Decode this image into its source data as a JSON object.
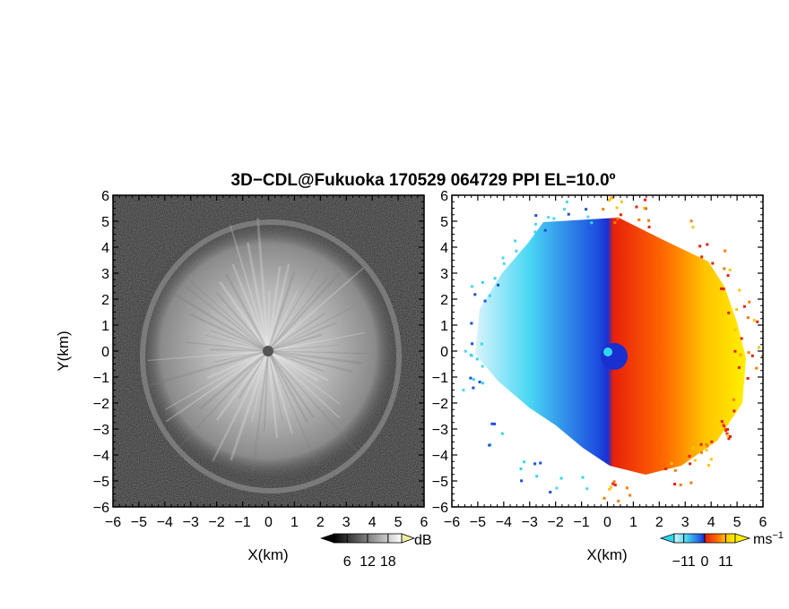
{
  "title": "3D−CDL@Fukuoka 170529 064729 PPI EL=10.0º",
  "chart_data": [
    {
      "type": "heatmap",
      "panel": "left",
      "xlabel": "X(km)",
      "ylabel": "Y(km)",
      "xlim": [
        -6,
        6
      ],
      "ylim": [
        -6,
        6
      ],
      "xticks": [
        "−6",
        "−5",
        "−4",
        "−3",
        "−2",
        "−1",
        "0",
        "1",
        "2",
        "3",
        "4",
        "5",
        "6"
      ],
      "yticks": [
        "−6",
        "−5",
        "−4",
        "−3",
        "−2",
        "−1",
        "0",
        "1",
        "2",
        "3",
        "4",
        "5",
        "6"
      ],
      "colormap": "gray",
      "colorbar": {
        "unit": "dB",
        "ticks": [
          "6",
          "12",
          "18"
        ],
        "values": [
          6,
          12,
          18
        ],
        "range": [
          2,
          22
        ]
      }
    },
    {
      "type": "heatmap",
      "panel": "right",
      "xlabel": "X(km)",
      "ylabel": "",
      "xlim": [
        -6,
        6
      ],
      "ylim": [
        -6,
        6
      ],
      "xticks": [
        "−6",
        "−5",
        "−4",
        "−3",
        "−2",
        "−1",
        "0",
        "1",
        "2",
        "3",
        "4",
        "5",
        "6"
      ],
      "yticks": [
        "−6",
        "−5",
        "−4",
        "−3",
        "−2",
        "−1",
        "0",
        "1",
        "2",
        "3",
        "4",
        "5",
        "6"
      ],
      "colormap": "cyan-blue-red-yellow",
      "colorbar": {
        "unit": "ms",
        "unit_sup": "−1",
        "ticks": [
          "−11",
          "0",
          "11"
        ],
        "values": [
          -11,
          0,
          11
        ],
        "range": [
          -16,
          16
        ]
      },
      "colors": {
        "cyan": "#2fd6f2",
        "blue": "#1a2fd0",
        "red": "#e8200a",
        "orange": "#ff7a00",
        "yellow": "#ffe600"
      }
    }
  ]
}
